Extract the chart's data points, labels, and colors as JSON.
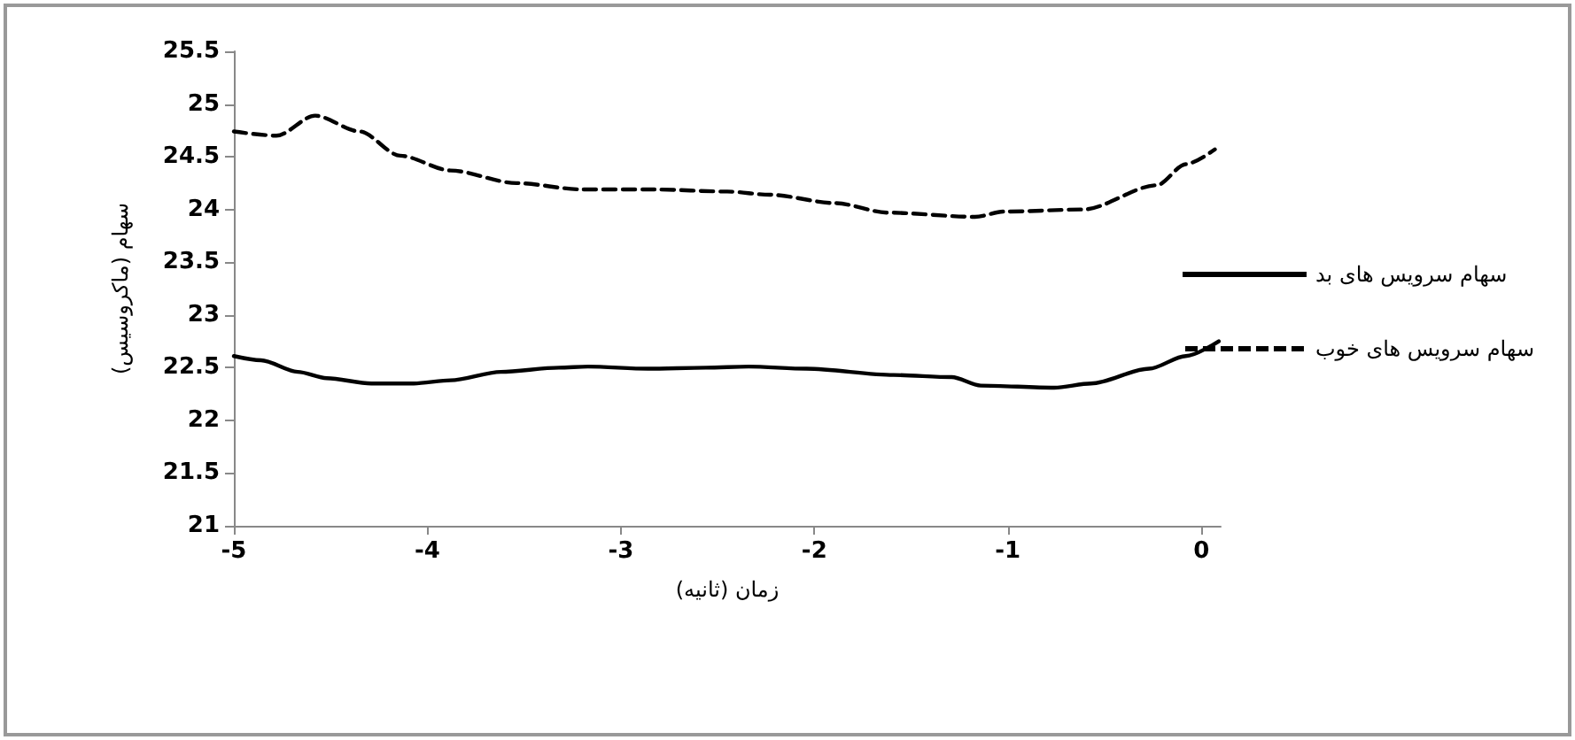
{
  "chart_data": {
    "type": "line",
    "xlabel": "زمان (ثانیه)",
    "ylabel": "سهام (ماکروسیس)",
    "xlim": [
      -5,
      0.1
    ],
    "xticks": [
      -5,
      -4,
      -3,
      -2,
      -1,
      0
    ],
    "ylim": [
      21,
      25.5
    ],
    "yticks": [
      21,
      21.5,
      22,
      22.5,
      23,
      23.5,
      24,
      24.5,
      25,
      25.5
    ],
    "grid": false,
    "legend": "right",
    "marker": "none",
    "series": [
      {
        "name": "سهام سرویس های بد",
        "color": "#000000",
        "line_style": "solid",
        "x": [
          -5,
          -4.86,
          -4.67,
          -4.52,
          -4.29,
          -4.07,
          -3.88,
          -3.62,
          -3.32,
          -3.17,
          -2.86,
          -2.56,
          -2.34,
          -2.04,
          -1.59,
          -1.29,
          -1.14,
          -0.76,
          -0.57,
          -0.27,
          -0.08,
          0.09
        ],
        "values": [
          22.61,
          22.57,
          22.46,
          22.4,
          22.35,
          22.35,
          22.38,
          22.46,
          22.5,
          22.51,
          22.49,
          22.5,
          22.51,
          22.49,
          22.43,
          22.41,
          22.33,
          22.31,
          22.35,
          22.49,
          22.61,
          22.75
        ]
      },
      {
        "name": "سهام سرویس های خوب",
        "color": "#000000",
        "line_style": "dashed",
        "x": [
          -5,
          -4.78,
          -4.58,
          -4.35,
          -4.14,
          -3.88,
          -3.54,
          -3.2,
          -2.83,
          -2.45,
          -2.23,
          -1.89,
          -1.62,
          -1.17,
          -1.02,
          -0.61,
          -0.23,
          -0.08,
          0.07
        ],
        "values": [
          24.74,
          24.7,
          24.89,
          24.74,
          24.51,
          24.37,
          24.25,
          24.19,
          24.19,
          24.17,
          24.14,
          24.06,
          23.97,
          23.93,
          23.98,
          24.0,
          24.23,
          24.43,
          24.57
        ]
      }
    ]
  }
}
